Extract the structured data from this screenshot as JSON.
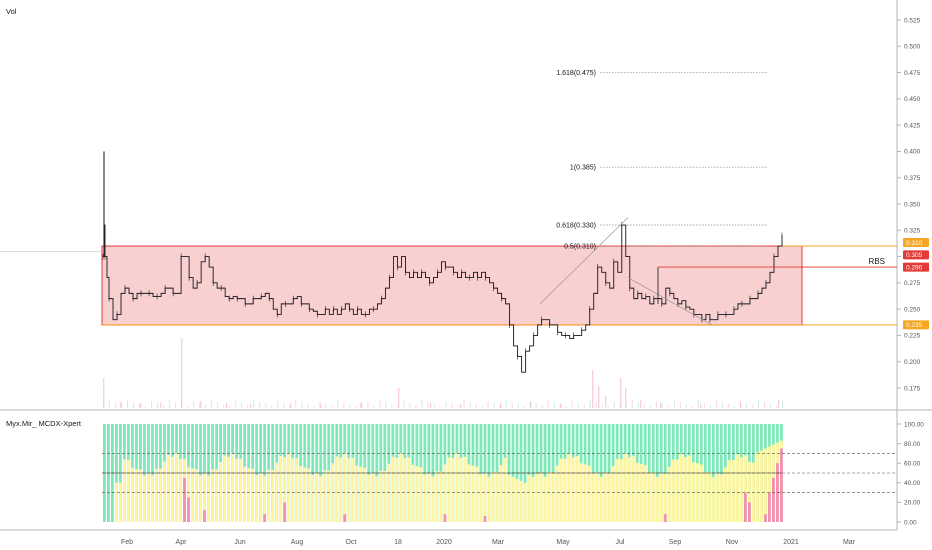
{
  "vol_label": "Vol",
  "indicator_label": "Myx.Mir_ MCDX-Xpert",
  "rbs_label": "RBS",
  "colors": {
    "zone_fill": "#f8c8c8",
    "zone_border": "#e53935",
    "price": "#131722",
    "banker": "#f48fb1",
    "hot": "#fff59d",
    "retail": "#7ee8b8",
    "upper_tag": "#f5a623",
    "lower_tag": "#f5a623",
    "rbs_tag": "#e53935",
    "rbs_text": "#26a69a"
  },
  "chart_data": {
    "type": "candlestick",
    "price_axis": {
      "ticks": [
        "0.525",
        "0.500",
        "0.475",
        "0.450",
        "0.425",
        "0.400",
        "0.375",
        "0.350",
        "0.325",
        "0.300",
        "0.275",
        "0.250",
        "0.225",
        "0.200",
        "0.175"
      ],
      "range": [
        0.16,
        0.535
      ]
    },
    "indicator_axis": {
      "ticks": [
        "100.00",
        "80.00",
        "60.00",
        "40.00",
        "20.00",
        "0.00"
      ],
      "range": [
        0,
        100
      ]
    },
    "x_labels": [
      "Feb",
      "Apr",
      "Jun",
      "Aug",
      "Oct",
      "18",
      "2020",
      "Mar",
      "May",
      "Jul",
      "Sep",
      "Nov",
      "2021",
      "Mar"
    ],
    "fibonacci": [
      {
        "label": "1.618(0.475)",
        "value": 0.475
      },
      {
        "label": "1(0.385)",
        "value": 0.385
      },
      {
        "label": "0.618(0.330)",
        "value": 0.33
      },
      {
        "label": "0.5(0.310)",
        "value": 0.31
      }
    ],
    "zone": {
      "top": 0.31,
      "bottom": 0.235
    },
    "price_tags": [
      {
        "label": "0.310",
        "value": 0.31,
        "kind": "upper"
      },
      {
        "label": "0.305",
        "value": 0.305,
        "kind": "current"
      },
      {
        "label": "0.290",
        "value": 0.29,
        "kind": "rbs"
      },
      {
        "label": "0.235",
        "value": 0.235,
        "kind": "lower"
      }
    ],
    "price_path": [
      [
        0,
        0.3
      ],
      [
        1,
        0.33
      ],
      [
        2,
        0.3
      ],
      [
        4,
        0.28
      ],
      [
        6,
        0.26
      ],
      [
        10,
        0.24
      ],
      [
        14,
        0.245
      ],
      [
        18,
        0.265
      ],
      [
        22,
        0.27
      ],
      [
        26,
        0.265
      ],
      [
        30,
        0.26
      ],
      [
        34,
        0.265
      ],
      [
        38,
        0.265
      ],
      [
        42,
        0.265
      ],
      [
        46,
        0.265
      ],
      [
        50,
        0.262
      ],
      [
        54,
        0.262
      ],
      [
        58,
        0.265
      ],
      [
        62,
        0.27
      ],
      [
        66,
        0.27
      ],
      [
        70,
        0.265
      ],
      [
        74,
        0.265
      ],
      [
        78,
        0.3
      ],
      [
        82,
        0.3
      ],
      [
        86,
        0.28
      ],
      [
        90,
        0.27
      ],
      [
        94,
        0.275
      ],
      [
        98,
        0.295
      ],
      [
        102,
        0.3
      ],
      [
        106,
        0.29
      ],
      [
        110,
        0.275
      ],
      [
        114,
        0.27
      ],
      [
        118,
        0.27
      ],
      [
        122,
        0.262
      ],
      [
        126,
        0.26
      ],
      [
        130,
        0.262
      ],
      [
        134,
        0.26
      ],
      [
        138,
        0.26
      ],
      [
        142,
        0.255
      ],
      [
        146,
        0.255
      ],
      [
        150,
        0.26
      ],
      [
        154,
        0.26
      ],
      [
        158,
        0.262
      ],
      [
        162,
        0.265
      ],
      [
        166,
        0.26
      ],
      [
        170,
        0.25
      ],
      [
        174,
        0.245
      ],
      [
        178,
        0.255
      ],
      [
        182,
        0.255
      ],
      [
        186,
        0.255
      ],
      [
        190,
        0.26
      ],
      [
        194,
        0.262
      ],
      [
        198,
        0.255
      ],
      [
        202,
        0.255
      ],
      [
        206,
        0.25
      ],
      [
        210,
        0.248
      ],
      [
        214,
        0.245
      ],
      [
        218,
        0.245
      ],
      [
        222,
        0.25
      ],
      [
        226,
        0.245
      ],
      [
        230,
        0.25
      ],
      [
        234,
        0.245
      ],
      [
        238,
        0.25
      ],
      [
        242,
        0.255
      ],
      [
        246,
        0.25
      ],
      [
        250,
        0.245
      ],
      [
        254,
        0.25
      ],
      [
        258,
        0.245
      ],
      [
        262,
        0.245
      ],
      [
        266,
        0.25
      ],
      [
        270,
        0.25
      ],
      [
        274,
        0.255
      ],
      [
        278,
        0.26
      ],
      [
        282,
        0.27
      ],
      [
        286,
        0.28
      ],
      [
        290,
        0.3
      ],
      [
        294,
        0.29
      ],
      [
        298,
        0.3
      ],
      [
        302,
        0.285
      ],
      [
        306,
        0.28
      ],
      [
        310,
        0.285
      ],
      [
        314,
        0.28
      ],
      [
        318,
        0.285
      ],
      [
        322,
        0.28
      ],
      [
        326,
        0.275
      ],
      [
        330,
        0.28
      ],
      [
        334,
        0.285
      ],
      [
        338,
        0.295
      ],
      [
        342,
        0.29
      ],
      [
        346,
        0.29
      ],
      [
        350,
        0.285
      ],
      [
        354,
        0.28
      ],
      [
        358,
        0.285
      ],
      [
        362,
        0.28
      ],
      [
        366,
        0.28
      ],
      [
        370,
        0.285
      ],
      [
        374,
        0.28
      ],
      [
        378,
        0.285
      ],
      [
        382,
        0.28
      ],
      [
        386,
        0.275
      ],
      [
        390,
        0.27
      ],
      [
        394,
        0.265
      ],
      [
        398,
        0.26
      ],
      [
        402,
        0.255
      ],
      [
        406,
        0.235
      ],
      [
        410,
        0.215
      ],
      [
        414,
        0.205
      ],
      [
        418,
        0.19
      ],
      [
        422,
        0.21
      ],
      [
        426,
        0.215
      ],
      [
        430,
        0.225
      ],
      [
        434,
        0.235
      ],
      [
        438,
        0.24
      ],
      [
        442,
        0.24
      ],
      [
        446,
        0.235
      ],
      [
        450,
        0.235
      ],
      [
        454,
        0.228
      ],
      [
        458,
        0.225
      ],
      [
        462,
        0.225
      ],
      [
        466,
        0.222
      ],
      [
        470,
        0.225
      ],
      [
        474,
        0.225
      ],
      [
        478,
        0.23
      ],
      [
        482,
        0.235
      ],
      [
        486,
        0.25
      ],
      [
        490,
        0.265
      ],
      [
        494,
        0.29
      ],
      [
        498,
        0.285
      ],
      [
        502,
        0.275
      ],
      [
        506,
        0.27
      ],
      [
        510,
        0.295
      ],
      [
        514,
        0.285
      ],
      [
        518,
        0.33
      ],
      [
        522,
        0.3
      ],
      [
        526,
        0.27
      ],
      [
        530,
        0.26
      ],
      [
        534,
        0.265
      ],
      [
        538,
        0.26
      ],
      [
        542,
        0.262
      ],
      [
        546,
        0.255
      ],
      [
        550,
        0.26
      ],
      [
        554,
        0.26
      ],
      [
        558,
        0.255
      ],
      [
        562,
        0.27
      ],
      [
        566,
        0.265
      ],
      [
        570,
        0.26
      ],
      [
        574,
        0.255
      ],
      [
        578,
        0.258
      ],
      [
        582,
        0.252
      ],
      [
        586,
        0.25
      ],
      [
        590,
        0.245
      ],
      [
        594,
        0.245
      ],
      [
        598,
        0.24
      ],
      [
        602,
        0.245
      ],
      [
        606,
        0.24
      ],
      [
        610,
        0.24
      ],
      [
        614,
        0.245
      ],
      [
        618,
        0.245
      ],
      [
        622,
        0.245
      ],
      [
        626,
        0.245
      ],
      [
        630,
        0.25
      ],
      [
        634,
        0.255
      ],
      [
        638,
        0.255
      ],
      [
        642,
        0.255
      ],
      [
        646,
        0.26
      ],
      [
        650,
        0.26
      ],
      [
        654,
        0.265
      ],
      [
        658,
        0.27
      ],
      [
        662,
        0.275
      ],
      [
        666,
        0.285
      ],
      [
        670,
        0.3
      ],
      [
        674,
        0.31
      ],
      [
        678,
        0.32
      ]
    ]
  }
}
